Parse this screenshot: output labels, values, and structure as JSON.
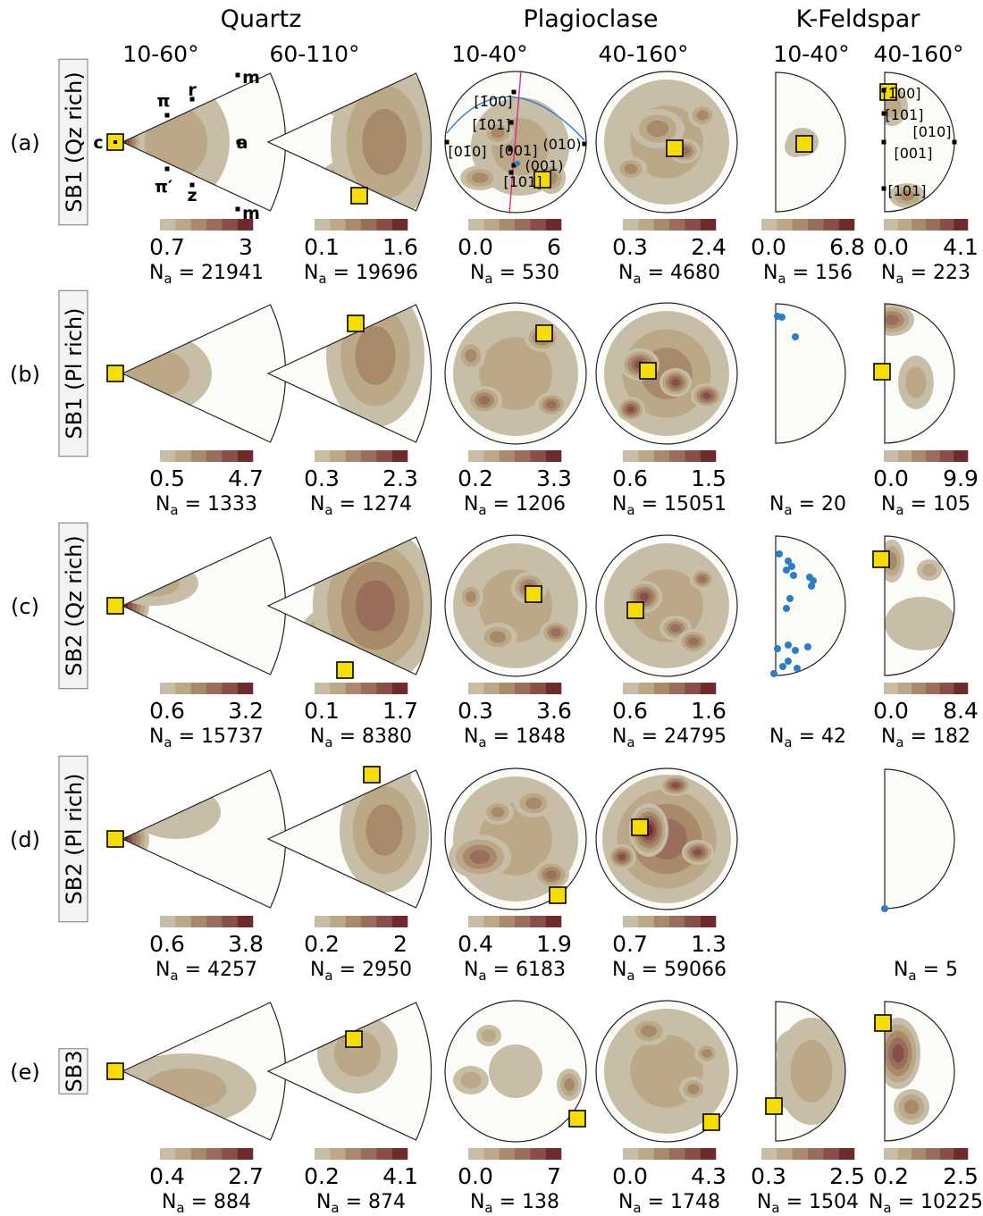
{
  "palette": [
    "#c8bea8",
    "#bba886",
    "#a88a6a",
    "#9a6e5c",
    "#8a4e48",
    "#6e2a2c"
  ],
  "headers": {
    "minerals": [
      "Quartz",
      "Plagioclase",
      "K-Feldspar"
    ],
    "angle_ranges": [
      "10-60°",
      "60-110°",
      "10-40°",
      "40-160°",
      "10-40°",
      "40-160°"
    ]
  },
  "rows": [
    {
      "letter": "(a)",
      "sample": "SB1 (Qz rich)",
      "panels": [
        {
          "min": "0.7",
          "max": "3",
          "na": "N",
          "na_sub": "a",
          "na_val": " = 21941"
        },
        {
          "min": "0.1",
          "max": "1.6",
          "na": "N",
          "na_sub": "a",
          "na_val": " = 19696"
        },
        {
          "min": "0.0",
          "max": "6",
          "na": "N",
          "na_sub": "a",
          "na_val": " = 530"
        },
        {
          "min": "0.3",
          "max": "2.4",
          "na": "N",
          "na_sub": "a",
          "na_val": " = 4680"
        },
        {
          "min": "0.0",
          "max": "6.8",
          "na": "N",
          "na_sub": "a",
          "na_val": " = 156"
        },
        {
          "min": "0.0",
          "max": "4.1",
          "na": "N",
          "na_sub": "a",
          "na_val": " = 223"
        }
      ]
    },
    {
      "letter": "(b)",
      "sample": "SB1 (Pl rich)",
      "panels": [
        {
          "min": "0.5",
          "max": "4.7",
          "na": "N",
          "na_sub": "a",
          "na_val": " = 1333"
        },
        {
          "min": "0.3",
          "max": "2.3",
          "na": "N",
          "na_sub": "a",
          "na_val": " = 1274"
        },
        {
          "min": "0.2",
          "max": "3.3",
          "na": "N",
          "na_sub": "a",
          "na_val": " = 1206"
        },
        {
          "min": "0.6",
          "max": "1.5",
          "na": "N",
          "na_sub": "a",
          "na_val": " = 15051"
        },
        {
          "min": "",
          "max": "",
          "na": "N",
          "na_sub": "a",
          "na_val": " = 20"
        },
        {
          "min": "0.0",
          "max": "9.9",
          "na": "N",
          "na_sub": "a",
          "na_val": " = 105"
        }
      ]
    },
    {
      "letter": "(c)",
      "sample": "SB2 (Qz rich)",
      "panels": [
        {
          "min": "0.6",
          "max": "3.2",
          "na": "N",
          "na_sub": "a",
          "na_val": " = 15737"
        },
        {
          "min": "0.1",
          "max": "1.7",
          "na": "N",
          "na_sub": "a",
          "na_val": " = 8380"
        },
        {
          "min": "0.3",
          "max": "3.6",
          "na": "N",
          "na_sub": "a",
          "na_val": " = 1848"
        },
        {
          "min": "0.6",
          "max": "1.6",
          "na": "N",
          "na_sub": "a",
          "na_val": " = 24795"
        },
        {
          "min": "",
          "max": "",
          "na": "N",
          "na_sub": "a",
          "na_val": " = 42"
        },
        {
          "min": "0.0",
          "max": "8.4",
          "na": "N",
          "na_sub": "a",
          "na_val": " = 182"
        }
      ]
    },
    {
      "letter": "(d)",
      "sample": "SB2 (Pl rich)",
      "panels": [
        {
          "min": "0.6",
          "max": "3.8",
          "na": "N",
          "na_sub": "a",
          "na_val": " = 4257"
        },
        {
          "min": "0.2",
          "max": "2",
          "na": "N",
          "na_sub": "a",
          "na_val": " = 2950"
        },
        {
          "min": "0.4",
          "max": "1.9",
          "na": "N",
          "na_sub": "a",
          "na_val": " = 6183"
        },
        {
          "min": "0.7",
          "max": "1.3",
          "na": "N",
          "na_sub": "a",
          "na_val": " = 59066"
        },
        {
          "min": "",
          "max": "",
          "na": "",
          "na_sub": "",
          "na_val": ""
        },
        {
          "min": "",
          "max": "",
          "na": "N",
          "na_sub": "a",
          "na_val": " = 5"
        }
      ]
    },
    {
      "letter": "(e)",
      "sample": "SB3",
      "panels": [
        {
          "min": "0.4",
          "max": "2.7",
          "na": "N",
          "na_sub": "a",
          "na_val": " = 884"
        },
        {
          "min": "0.2",
          "max": "4.1",
          "na": "N",
          "na_sub": "a",
          "na_val": " = 874"
        },
        {
          "min": "0.0",
          "max": "7",
          "na": "N",
          "na_sub": "a",
          "na_val": " = 138"
        },
        {
          "min": "0.0",
          "max": "4.3",
          "na": "N",
          "na_sub": "a",
          "na_val": " = 1748"
        },
        {
          "min": "0.3",
          "max": "2.5",
          "na": "N",
          "na_sub": "a",
          "na_val": " = 1504"
        },
        {
          "min": "0.2",
          "max": "2.5",
          "na": "N",
          "na_sub": "a",
          "na_val": " = 10225"
        }
      ]
    }
  ],
  "quartz_labels": [
    "c",
    "a",
    "m",
    "m",
    "r",
    "z",
    "π",
    "π′"
  ],
  "plag_labels": [
    "[1̄00]",
    "[1̄01]",
    "[01̄0]",
    "[001]",
    "(010)",
    "(001)",
    "[101]"
  ],
  "kfs_labels": [
    "[1̄00]",
    "[101]",
    "[010]",
    "[001]",
    "[101]"
  ]
}
